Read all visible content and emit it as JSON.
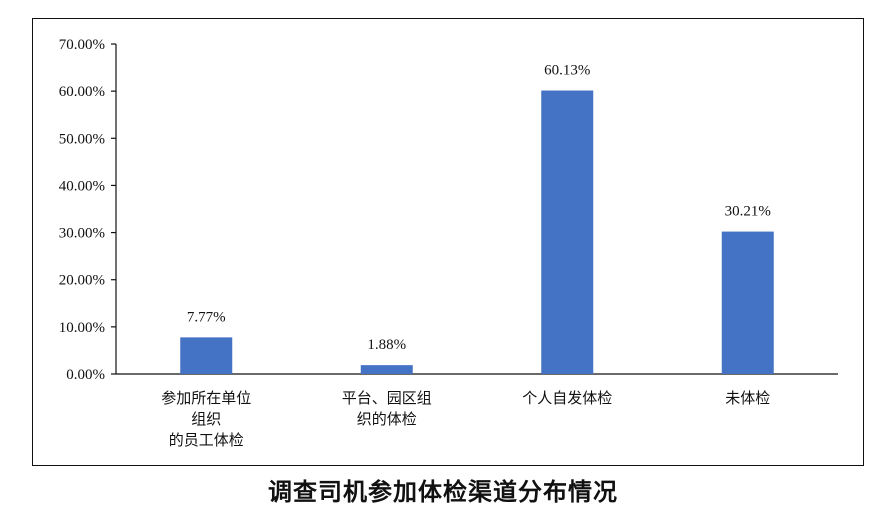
{
  "chart_data": {
    "type": "bar",
    "title": "调查司机参加体检渠道分布情况",
    "xlabel": "",
    "ylabel": "",
    "categories": [
      [
        "参加所在单位",
        "组织",
        "的员工体检"
      ],
      [
        "平台、园区组",
        "织的体检"
      ],
      [
        "个人自发体检"
      ],
      [
        "未体检"
      ]
    ],
    "values": [
      7.77,
      1.88,
      60.13,
      30.21
    ],
    "data_labels": [
      "7.77%",
      "1.88%",
      "60.13%",
      "30.21%"
    ],
    "ylim": [
      0,
      70
    ],
    "yticks": [
      0,
      10,
      20,
      30,
      40,
      50,
      60,
      70
    ],
    "ytick_labels": [
      "0.00%",
      "10.00%",
      "20.00%",
      "30.00%",
      "40.00%",
      "50.00%",
      "60.00%",
      "70.00%"
    ],
    "bar_color": "#4472C4",
    "grid": false,
    "legend": "none"
  }
}
